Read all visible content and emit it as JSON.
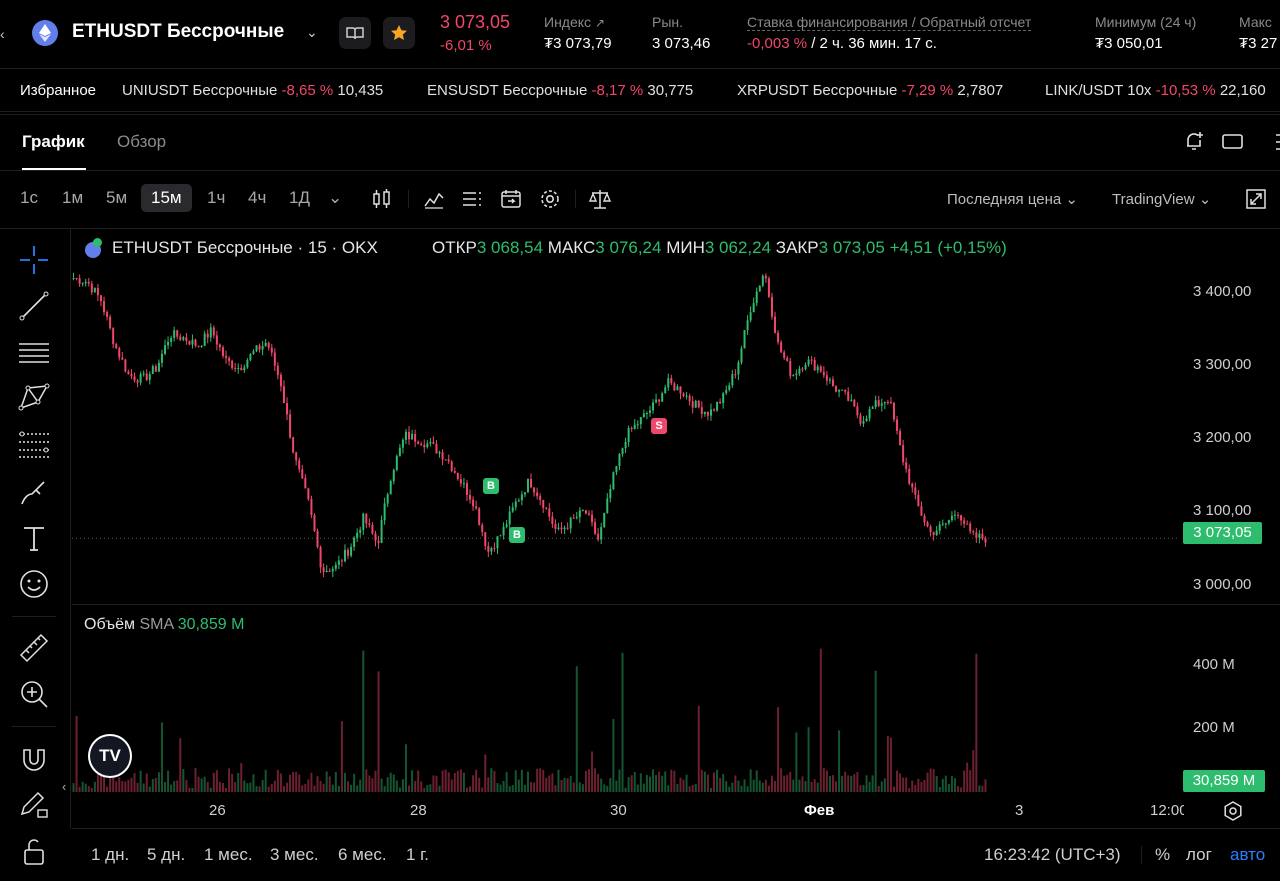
{
  "header": {
    "symbol": "ETHUSDT Бессрочные",
    "last_price": "3 073,05",
    "change_pct": "-6,01 %",
    "index_label": "Индекс",
    "index_value": "₮3 073,79",
    "market_label": "Рын.",
    "market_value": "3 073,46",
    "funding_label": "Ставка финансирования / Обратный отсчет",
    "funding_rate": "-0,003 %",
    "funding_countdown": " / 2 ч. 36 мин. 17 с.",
    "min_label": "Минимум (24 ч)",
    "min_value": "₮3 050,01",
    "max_label": "Макс",
    "max_value": "₮3 27"
  },
  "favorites": {
    "label": "Избранное",
    "items": [
      {
        "name": "UNIUSDT Бессрочные",
        "change": "-8,65 %",
        "price": "10,435"
      },
      {
        "name": "ENSUSDT Бессрочные",
        "change": "-8,17 %",
        "price": "30,775"
      },
      {
        "name": "XRPUSDT Бессрочные",
        "change": "-7,29 %",
        "price": "2,7807"
      },
      {
        "name": "LINK/USDT 10x",
        "change": "-10,53 %",
        "price": "22,160"
      }
    ]
  },
  "tabs": {
    "chart": "График",
    "overview": "Обзор"
  },
  "toolbar": {
    "timeframes": [
      "1с",
      "1м",
      "5м",
      "15м",
      "1ч",
      "4ч",
      "1Д"
    ],
    "active_timeframe": "15м",
    "price_type": "Последняя цена",
    "provider": "TradingView"
  },
  "legend": {
    "title": "ETHUSDT Бессрочные · 15 · OKX",
    "open_label": "ОТКР",
    "open": "3 068,54",
    "high_label": "МАКС",
    "high": "3 076,24",
    "low_label": "МИН",
    "low": "3 062,24",
    "close_label": "ЗАКР",
    "close": "3 073,05",
    "change": "+4,51 (+0,15%)"
  },
  "price_axis": [
    "3 400,00",
    "3 300,00",
    "3 200,00",
    "3 100,00",
    "3 000,00"
  ],
  "current_price_tag": "3 073,05",
  "volume": {
    "label": "Объём",
    "sma_label": "SMA",
    "sma_value": "30,859 M",
    "axis": [
      "400 M",
      "200 M"
    ],
    "tag": "30,859 M"
  },
  "time_axis": [
    "26",
    "28",
    "30",
    "Фев",
    "3",
    "12:00"
  ],
  "markers": [
    {
      "label": "B"
    },
    {
      "label": "B"
    },
    {
      "label": "S"
    }
  ],
  "bottom": {
    "ranges": [
      "1 дн.",
      "5 дн.",
      "1 мес.",
      "3 мес.",
      "6 мес.",
      "1 г."
    ],
    "time": "16:23:42 (UTC+3)",
    "percent": "%",
    "log": "лог",
    "auto": "авто"
  },
  "colors": {
    "up": "#2ebd6e",
    "down": "#f0476a",
    "accent": "#2a7fff"
  },
  "chart_data": {
    "type": "candlestick",
    "title": "ETHUSDT Бессрочные · 15 · OKX",
    "x_ticks": [
      "26",
      "28",
      "30",
      "Фев",
      "3",
      "12:00"
    ],
    "ylim": [
      2980,
      3440
    ],
    "close_path": [
      3420,
      3415,
      3390,
      3330,
      3290,
      3285,
      3300,
      3345,
      3340,
      3330,
      3350,
      3310,
      3300,
      3320,
      3335,
      3280,
      3180,
      3120,
      3030,
      3035,
      3060,
      3100,
      3065,
      3160,
      3210,
      3205,
      3195,
      3180,
      3150,
      3120,
      3055,
      3080,
      3120,
      3150,
      3120,
      3080,
      3095,
      3110,
      3070,
      3150,
      3210,
      3230,
      3250,
      3280,
      3270,
      3250,
      3240,
      3260,
      3300,
      3380,
      3430,
      3330,
      3290,
      3310,
      3300,
      3275,
      3260,
      3230,
      3250,
      3260,
      3180,
      3120,
      3080,
      3090,
      3110,
      3075,
      3073
    ]
  }
}
